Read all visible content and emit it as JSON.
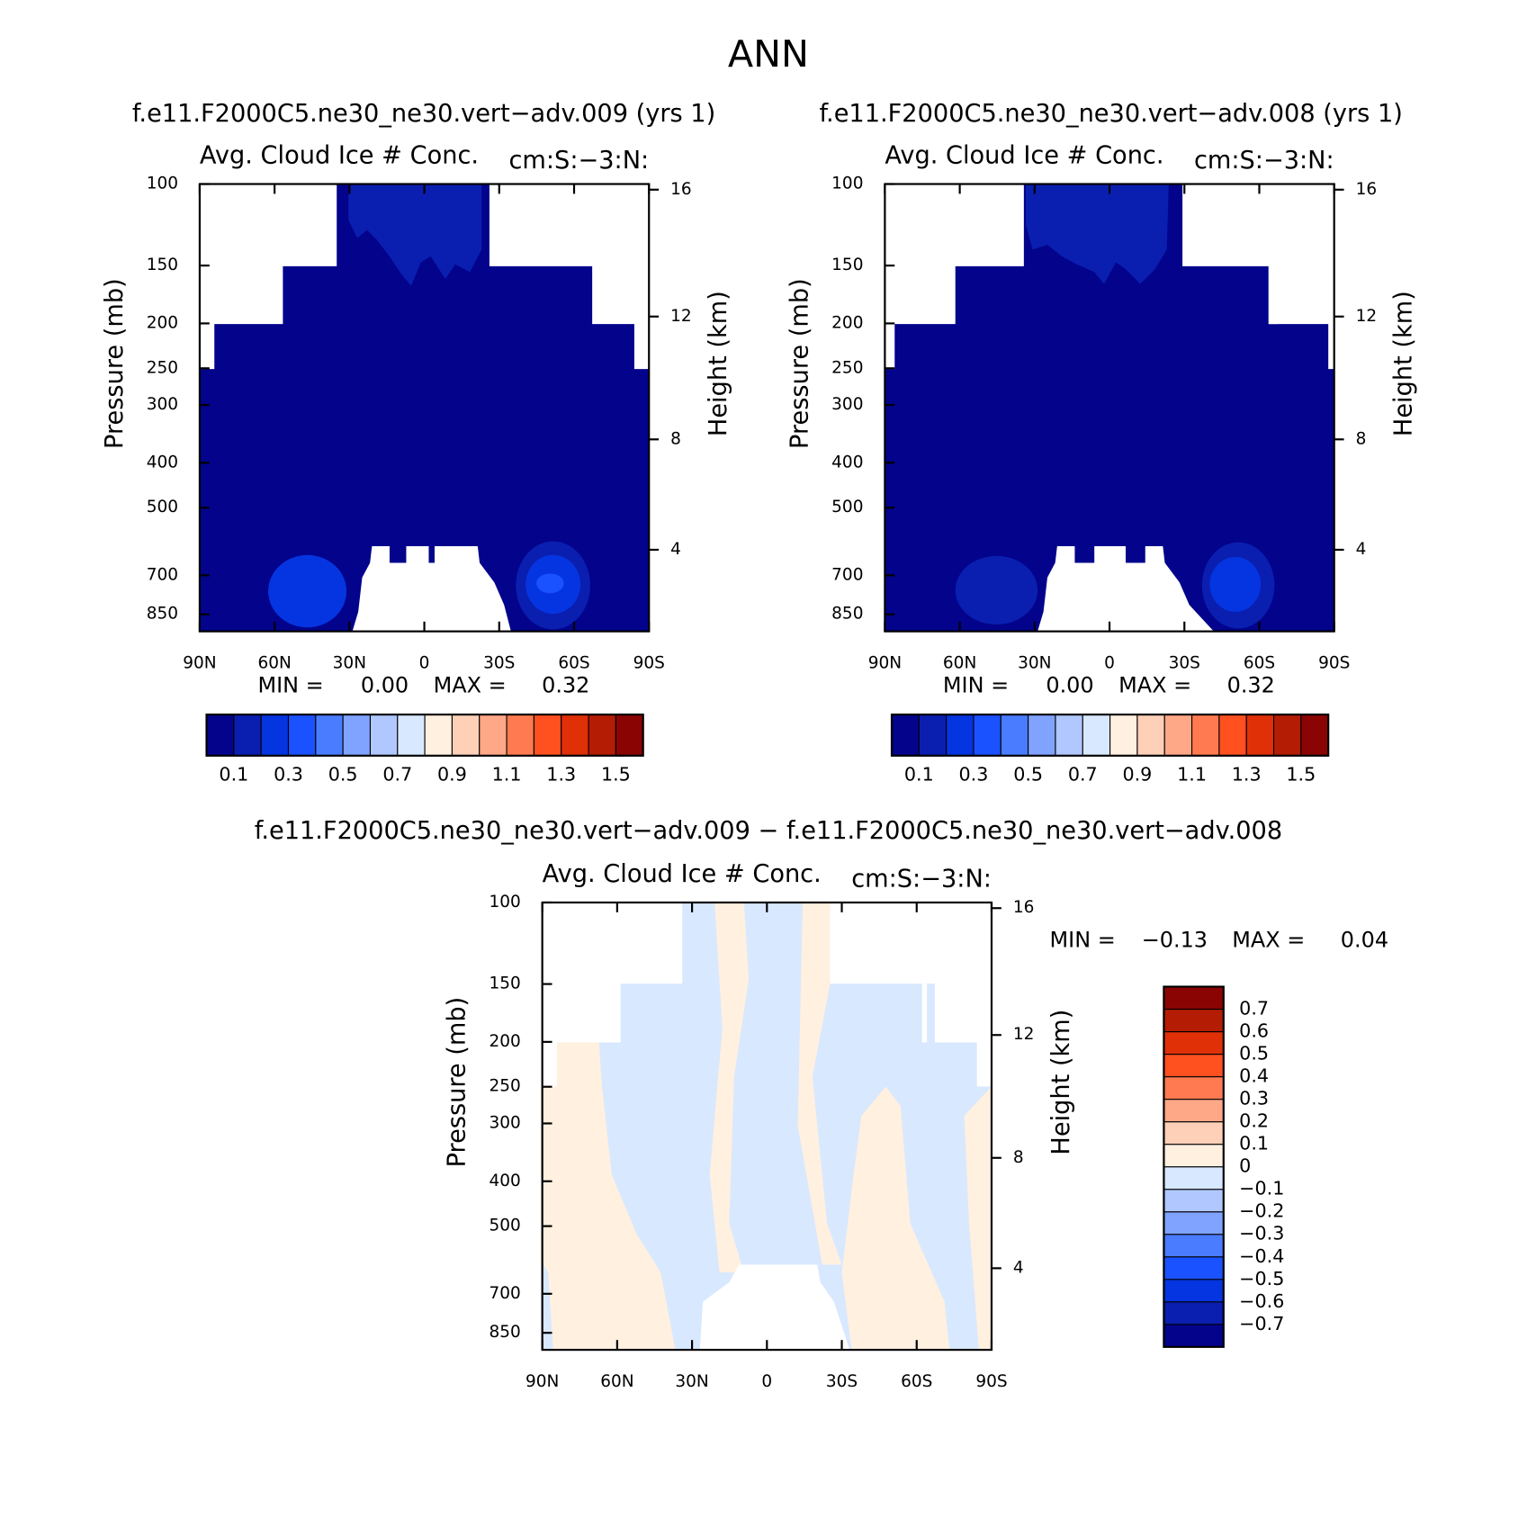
{
  "title": "ANN",
  "chart_data": [
    {
      "type": "contour",
      "subtitle": "f.e11.F2000C5.ne30_ne30.vert−adv.009 (yrs 1)",
      "title": "Avg. Cloud Ice # Conc.",
      "units": "cm:S:−3:N:",
      "xlim": [
        90,
        -90
      ],
      "xticks": [
        {
          "value": 90,
          "label": "90N"
        },
        {
          "value": 60,
          "label": "60N"
        },
        {
          "value": 30,
          "label": "30N"
        },
        0,
        {
          "value": -30,
          "label": "30S"
        },
        {
          "value": -60,
          "label": "60S"
        },
        {
          "value": -90,
          "label": "90S"
        }
      ],
      "ylabel": "Pressure (mb)",
      "ylim": [
        100,
        925
      ],
      "log_y": true,
      "yticks": [
        100,
        150,
        200,
        250,
        300,
        400,
        500,
        700,
        850
      ],
      "y2label": "Height (km)",
      "y2ticks": [
        4,
        8,
        12,
        16
      ],
      "stats": [
        {
          "name": "MIN =",
          "value": 0,
          "label": "0.00"
        },
        {
          "name": "MAX =",
          "value": 0.32,
          "label": "0.32"
        }
      ],
      "levels": [
        0.1,
        0.2,
        0.3,
        0.4,
        0.5,
        0.6,
        0.7,
        0.8,
        0.9,
        1.0,
        1.1,
        1.2,
        1.3,
        1.4,
        1.5
      ],
      "colorbar_ticks": [
        0.1,
        0.3,
        0.5,
        0.7,
        0.9,
        1.1,
        1.3,
        1.5
      ],
      "colors": [
        "#03038c",
        "#0a1fb0",
        "#0535e0",
        "#1a52ff",
        "#4a7cff",
        "#7fa3ff",
        "#b0c8ff",
        "#d8e8ff",
        "#fff0e0",
        "#ffd0b8",
        "#ffa888",
        "#ff7a50",
        "#ff5020",
        "#e03008",
        "#b41c04",
        "#8a0404"
      ]
    },
    {
      "type": "contour",
      "subtitle": "f.e11.F2000C5.ne30_ne30.vert−adv.008 (yrs 1)",
      "title": "Avg. Cloud Ice # Conc.",
      "units": "cm:S:−3:N:",
      "xlim": [
        90,
        -90
      ],
      "xticks": [
        {
          "value": 90,
          "label": "90N"
        },
        {
          "value": 60,
          "label": "60N"
        },
        {
          "value": 30,
          "label": "30N"
        },
        0,
        {
          "value": -30,
          "label": "30S"
        },
        {
          "value": -60,
          "label": "60S"
        },
        {
          "value": -90,
          "label": "90S"
        }
      ],
      "ylabel": "Pressure (mb)",
      "ylim": [
        100,
        925
      ],
      "log_y": true,
      "yticks": [
        100,
        150,
        200,
        250,
        300,
        400,
        500,
        700,
        850
      ],
      "y2label": "Height (km)",
      "y2ticks": [
        4,
        8,
        12,
        16
      ],
      "stats": [
        {
          "name": "MIN =",
          "value": 0,
          "label": "0.00"
        },
        {
          "name": "MAX =",
          "value": 0.32,
          "label": "0.32"
        }
      ],
      "levels": [
        0.1,
        0.2,
        0.3,
        0.4,
        0.5,
        0.6,
        0.7,
        0.8,
        0.9,
        1.0,
        1.1,
        1.2,
        1.3,
        1.4,
        1.5
      ],
      "colorbar_ticks": [
        0.1,
        0.3,
        0.5,
        0.7,
        0.9,
        1.1,
        1.3,
        1.5
      ],
      "colors": [
        "#03038c",
        "#0a1fb0",
        "#0535e0",
        "#1a52ff",
        "#4a7cff",
        "#7fa3ff",
        "#b0c8ff",
        "#d8e8ff",
        "#fff0e0",
        "#ffd0b8",
        "#ffa888",
        "#ff7a50",
        "#ff5020",
        "#e03008",
        "#b41c04",
        "#8a0404"
      ]
    },
    {
      "type": "contour",
      "subtitle": "f.e11.F2000C5.ne30_ne30.vert−adv.009 − f.e11.F2000C5.ne30_ne30.vert−adv.008",
      "title": "Avg. Cloud Ice # Conc.",
      "units": "cm:S:−3:N:",
      "xlim": [
        90,
        -90
      ],
      "xticks": [
        {
          "value": 90,
          "label": "90N"
        },
        {
          "value": 60,
          "label": "60N"
        },
        {
          "value": 30,
          "label": "30N"
        },
        0,
        {
          "value": -30,
          "label": "30S"
        },
        {
          "value": -60,
          "label": "60S"
        },
        {
          "value": -90,
          "label": "90S"
        }
      ],
      "ylabel": "Pressure (mb)",
      "ylim": [
        100,
        925
      ],
      "log_y": true,
      "yticks": [
        100,
        150,
        200,
        250,
        300,
        400,
        500,
        700,
        850
      ],
      "y2label": "Height (km)",
      "y2ticks": [
        4,
        8,
        12,
        16
      ],
      "stats": [
        {
          "name": "MIN =",
          "value": -0.13,
          "label": "−0.13"
        },
        {
          "name": "MAX =",
          "value": 0.04,
          "label": "0.04"
        }
      ],
      "levels": [
        {
          "value": -0.7,
          "label": "−0.7"
        },
        {
          "value": -0.6,
          "label": "−0.6"
        },
        {
          "value": -0.5,
          "label": "−0.5"
        },
        {
          "value": -0.4,
          "label": "−0.4"
        },
        {
          "value": -0.3,
          "label": "−0.3"
        },
        {
          "value": -0.2,
          "label": "−0.2"
        },
        {
          "value": -0.1,
          "label": "−0.1"
        },
        0,
        0.1,
        0.2,
        0.3,
        0.4,
        0.5,
        0.6,
        0.7
      ],
      "colors": [
        "#03038c",
        "#0a1fb0",
        "#0535e0",
        "#1a52ff",
        "#4a7cff",
        "#7fa3ff",
        "#b0c8ff",
        "#d8e8ff",
        "#fff0e0",
        "#ffd0b8",
        "#ffa888",
        "#ff7a50",
        "#ff5020",
        "#e03008",
        "#b41c04",
        "#8a0404"
      ]
    }
  ]
}
